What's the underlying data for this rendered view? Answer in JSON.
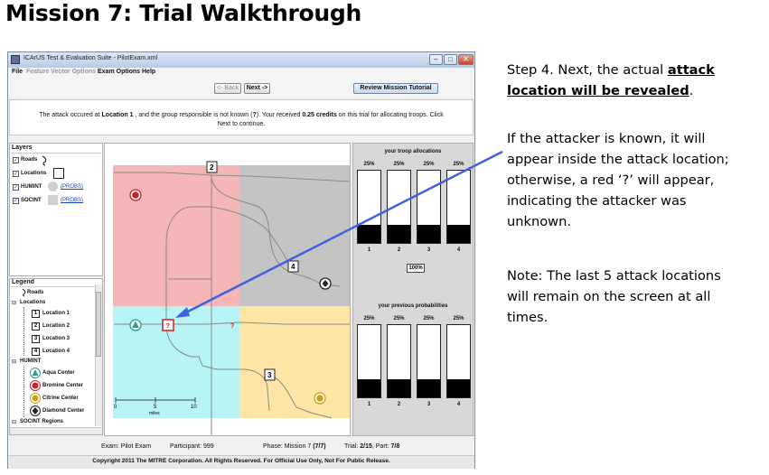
{
  "slide": {
    "title": "Mission 7: Trial Walkthrough",
    "step_prefix": "Step 4. Next, the actual ",
    "step_emph_1": "attack",
    "step_emph_2": "location will be revealed",
    "step_suffix": ".",
    "known_lines": [
      "If the attacker is known, it will",
      "appear inside the attack location;",
      "otherwise, a red ‘?’ will appear,",
      "indicating the attacker was",
      "unknown."
    ],
    "note_lines": [
      "Note: The last 5 attack locations",
      "will remain on the screen at all",
      "times."
    ],
    "arrow_color": "#3f63dd"
  },
  "window": {
    "title": "ICArUS Test & Evaluation Suite - PilotExam.xml",
    "controls": [
      "minimize",
      "maximize",
      "close"
    ],
    "menu": {
      "file": "File",
      "feature": "Feature Vector Options",
      "exam": "Exam Options",
      "help": "Help"
    },
    "toolbar": {
      "back": "<- Back",
      "next": "Next ->",
      "review": "Review Mission Tutorial"
    },
    "instruction": {
      "line1": "The attack occured at Location 1 , and the group responsible is not known (?). Your received 0.25 credits on this trial for allocating troops. Click",
      "line2": "Next to continue."
    }
  },
  "layers": {
    "title": "Layers",
    "items": [
      {
        "label": "Roads"
      },
      {
        "label": "Locations"
      },
      {
        "label": "HUMINT",
        "link": "(PROBS)"
      },
      {
        "label": "SOCINT",
        "link": "(PROBS)"
      }
    ]
  },
  "legend": {
    "title": "Legend",
    "roads": "Roads",
    "locations_header": "Locations",
    "locations": [
      {
        "num": "1",
        "label": "Location 1"
      },
      {
        "num": "2",
        "label": "Location 2"
      },
      {
        "num": "3",
        "label": "Location 3"
      },
      {
        "num": "4",
        "label": "Location 4"
      }
    ],
    "humint_header": "HUMINT",
    "centers": [
      {
        "letter": "A",
        "label": "Aqua Center",
        "color": "#2f9c8d"
      },
      {
        "letter": "B",
        "label": "Bromine Center",
        "color": "#c8242c"
      },
      {
        "letter": "C",
        "label": "Citrine Center",
        "color": "#c9a21a"
      },
      {
        "letter": "D",
        "label": "Diamond Center",
        "color": "#222222"
      }
    ],
    "socint_header": "SOCINT Regions",
    "collapse_symbol": "⊟"
  },
  "map": {
    "location_labels": [
      "?",
      "2",
      "4",
      "3"
    ],
    "unknown_marker": "?",
    "regions": {
      "top_left": "#f4b6b6",
      "top_right": "#c4c4c4",
      "bottom_left": "#b8f3f6",
      "bottom_right": "#ffe5a6"
    },
    "scale": {
      "ticks": [
        "0",
        "5",
        "10"
      ],
      "unit": "miles"
    }
  },
  "allocations": {
    "title": "your troop allocations",
    "values": [
      25,
      25,
      25,
      25
    ],
    "labels": [
      "25%",
      "25%",
      "25%",
      "25%"
    ],
    "categories": [
      "1",
      "2",
      "3",
      "4"
    ],
    "total": "100%"
  },
  "previous": {
    "title": "your previous probabilities",
    "values": [
      25,
      25,
      25,
      25
    ],
    "labels": [
      "25%",
      "25%",
      "25%",
      "25%"
    ],
    "categories": [
      "1",
      "2",
      "3",
      "4"
    ]
  },
  "status": {
    "exam": "Exam: Pilot Exam",
    "participant": "Participant: 999",
    "phase": "Phase: Mission 7 (7/7)",
    "trial": "Trial: 2/15, Part: 7/8",
    "copyright": "Copyright 2011 The MITRE Corporation. All Rights Reserved. For Official Use Only, Not For Public Release."
  }
}
